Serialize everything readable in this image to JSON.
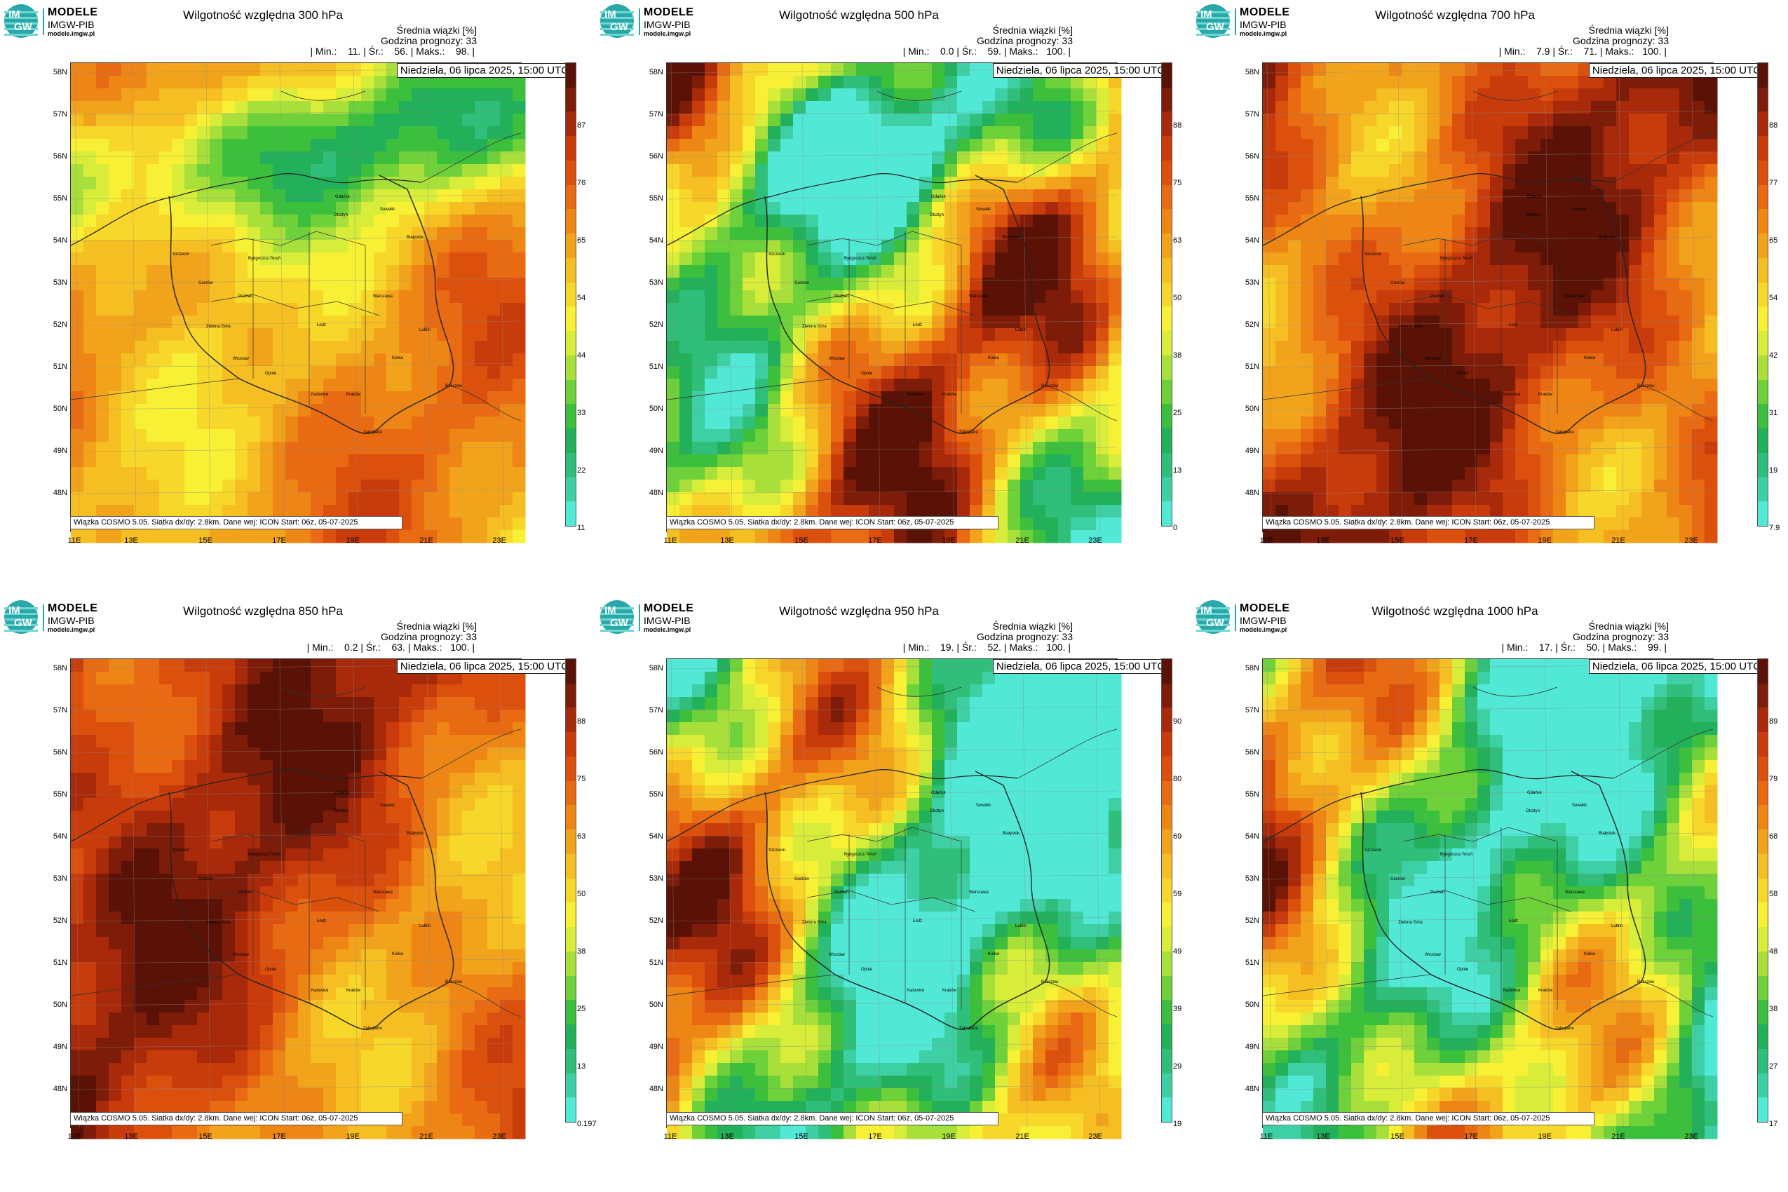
{
  "logo": {
    "circle_top": "IM",
    "circle_bottom": "GW",
    "line1": "MODELE",
    "line2": "IMGW-PIB",
    "line3": "modele.imgw.pl"
  },
  "common": {
    "mean_label": "Średnia wiązki [%]",
    "forecast_hour_label": "Godzina prognozy: 33",
    "date_label": "Niedziela, 06 lipca 2025, 15:00 UTC",
    "footer": "Wiązka COSMO 5.05. Siatka dx/dy: 2.8km. Dane wej: ICON Start: 06z, 05-07-2025",
    "lat_labels": [
      "58N",
      "57N",
      "56N",
      "55N",
      "54N",
      "53N",
      "52N",
      "51N",
      "50N",
      "49N",
      "48N"
    ],
    "lon_labels": [
      "11E",
      "13E",
      "15E",
      "17E",
      "19E",
      "21E",
      "23E"
    ],
    "cities": [
      "Gdańsk",
      "Olsztyn",
      "Suwałki",
      "Białystok",
      "Szczecin",
      "Bydgoszcz-Toruń",
      "Gorzów",
      "Poznań",
      "Warszawa",
      "Zielona Góra",
      "Łódź",
      "Lublin",
      "Wrocław",
      "Kielce",
      "Opole",
      "Rzeszów",
      "Katowice",
      "Kraków",
      "Zakopane"
    ]
  },
  "panels": [
    {
      "title": "Wilgotność względna 300 hPa",
      "stats": "| Min.:    11. | Śr.:    56. | Maks.:    98. |",
      "colorbar_ticks": [
        "87",
        "76",
        "65",
        "54",
        "44",
        "33",
        "22",
        "11"
      ]
    },
    {
      "title": "Wilgotność względna 500 hPa",
      "stats": "| Min.:    0.0 | Śr.:    59. | Maks.:   100. |",
      "colorbar_ticks": [
        "88",
        "75",
        "63",
        "50",
        "38",
        "25",
        "13",
        "0"
      ]
    },
    {
      "title": "Wilgotność względna 700 hPa",
      "stats": "| Min.:    7.9 | Śr.:    71. | Maks.:   100. |",
      "colorbar_ticks": [
        "88",
        "77",
        "65",
        "54",
        "42",
        "31",
        "19",
        "7.9"
      ]
    },
    {
      "title": "Wilgotność względna 850 hPa",
      "stats": "| Min.:    0.2 | Śr.:    63. | Maks.:   100. |",
      "colorbar_ticks": [
        "88",
        "75",
        "63",
        "50",
        "38",
        "25",
        "13",
        "0.197"
      ]
    },
    {
      "title": "Wilgotność względna 950 hPa",
      "stats": "| Min.:    19. | Śr.:    52. | Maks.:   100. |",
      "colorbar_ticks": [
        "90",
        "80",
        "69",
        "59",
        "49",
        "39",
        "29",
        "19"
      ]
    },
    {
      "title": "Wilgotność względna 1000 hPa",
      "stats": "| Min.:    17. | Śr.:    50. | Maks.:    99. |",
      "colorbar_ticks": [
        "89",
        "79",
        "68",
        "58",
        "48",
        "38",
        "27",
        "17"
      ]
    }
  ],
  "colors": {
    "scale": [
      "#52e8d6",
      "#3fcfa4",
      "#2fbf7a",
      "#22b05a",
      "#3cbf3c",
      "#6fd13a",
      "#a8df3a",
      "#d8ec3a",
      "#f7f035",
      "#f7d82a",
      "#f5be22",
      "#f2a31c",
      "#ee8616",
      "#e86a12",
      "#dc500e",
      "#c83c0c",
      "#a82a0a",
      "#7d1c08",
      "#5a1206"
    ],
    "background": "#ffffff"
  }
}
